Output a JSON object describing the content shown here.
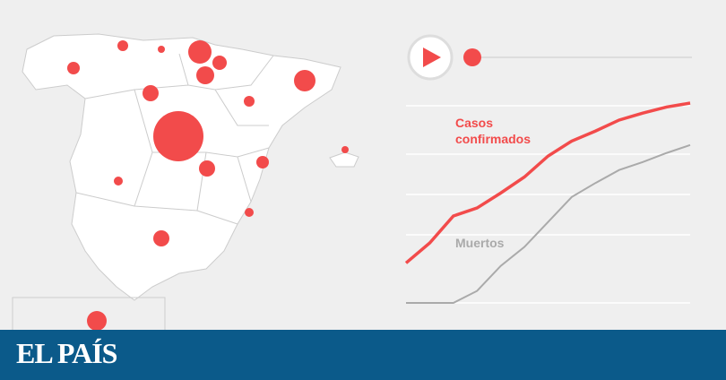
{
  "chart_data": [
    {
      "type": "bubble-map",
      "color": "#f24b4b",
      "values": [
        169,
        64,
        100,
        36,
        16,
        49,
        81,
        784,
        36,
        144,
        81,
        49,
        25,
        25,
        81,
        121,
        16
      ]
    },
    {
      "type": "line",
      "xlim": [
        0,
        12
      ],
      "ylim": [
        0,
        100
      ],
      "x": [
        0,
        1,
        2,
        3,
        4,
        5,
        6,
        7,
        8,
        9,
        10,
        11,
        12
      ],
      "series": [
        {
          "name": "Casos confirmados",
          "color": "#f24b4b",
          "values": [
            20,
            30,
            43.5,
            47.5,
            55,
            63,
            73.5,
            81,
            86,
            91.5,
            95,
            98,
            100
          ]
        },
        {
          "name": "Muertos",
          "color": "#aaaaaa",
          "values": [
            0,
            0,
            0,
            6,
            18.5,
            28,
            40.5,
            53,
            60,
            66.5,
            70.5,
            75,
            79
          ]
        }
      ]
    }
  ],
  "brand": "EL PAÍS"
}
